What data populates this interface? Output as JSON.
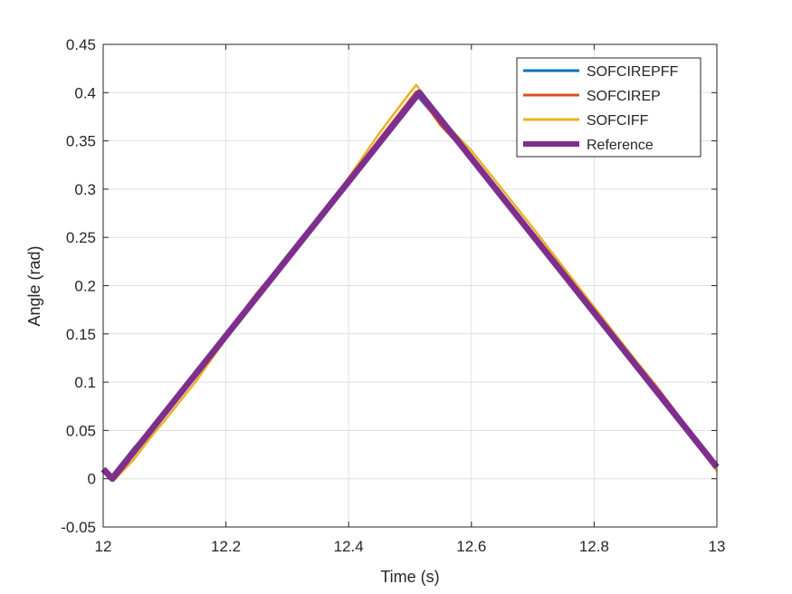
{
  "chart_data": {
    "type": "line",
    "xlabel": "Time (s)",
    "ylabel": "Angle (rad)",
    "xlim": [
      12,
      13
    ],
    "ylim": [
      -0.05,
      0.45
    ],
    "xticks": [
      12,
      12.2,
      12.4,
      12.6,
      12.8,
      13
    ],
    "xtick_labels": [
      "12",
      "12.2",
      "12.4",
      "12.6",
      "12.8",
      "13"
    ],
    "yticks": [
      -0.05,
      0,
      0.05,
      0.1,
      0.15,
      0.2,
      0.25,
      0.3,
      0.35,
      0.4,
      0.45
    ],
    "ytick_labels": [
      "-0.05",
      "0",
      "0.05",
      "0.1",
      "0.15",
      "0.2",
      "0.25",
      "0.3",
      "0.35",
      "0.4",
      "0.45"
    ],
    "grid": true,
    "legend_position": "top-right",
    "series": [
      {
        "name": "SOFCIREPFF",
        "color": "#0072BD",
        "width": 2.5,
        "x": [
          12,
          12.01,
          12.05,
          12.1,
          12.14,
          12.2,
          12.3,
          12.4,
          12.45,
          12.51,
          12.55,
          12.6,
          12.7,
          12.8,
          12.9,
          12.95,
          13
        ],
        "y": [
          0.008,
          0.0,
          0.032,
          0.068,
          0.1,
          0.148,
          0.228,
          0.308,
          0.35,
          0.398,
          0.368,
          0.33,
          0.254,
          0.174,
          0.096,
          0.055,
          0.012
        ]
      },
      {
        "name": "SOFCIREP",
        "color": "#D95319",
        "width": 2.5,
        "x": [
          12,
          12.01,
          12.05,
          12.1,
          12.2,
          12.25,
          12.3,
          12.4,
          12.45,
          12.51,
          12.55,
          12.6,
          12.7,
          12.8,
          12.9,
          12.95,
          13
        ],
        "y": [
          0.008,
          0.0,
          0.031,
          0.068,
          0.15,
          0.192,
          0.23,
          0.31,
          0.352,
          0.401,
          0.366,
          0.332,
          0.255,
          0.176,
          0.097,
          0.055,
          0.012
        ]
      },
      {
        "name": "SOFCIFF",
        "color": "#EDB120",
        "width": 2.5,
        "x": [
          12,
          12.02,
          12.05,
          12.08,
          12.1,
          12.15,
          12.2,
          12.3,
          12.4,
          12.45,
          12.5,
          12.51,
          12.55,
          12.6,
          12.65,
          12.7,
          12.8,
          12.9,
          12.95,
          13
        ],
        "y": [
          0.008,
          0.0,
          0.02,
          0.045,
          0.06,
          0.1,
          0.145,
          0.225,
          0.312,
          0.358,
          0.4,
          0.408,
          0.373,
          0.34,
          0.3,
          0.26,
          0.178,
          0.096,
          0.052,
          0.008
        ]
      }
    ],
    "reference": {
      "name": "Reference",
      "color": "#7E2F8E",
      "width": 7,
      "x": [
        12,
        12.015,
        12.515,
        13
      ],
      "y": [
        0.01,
        0.0,
        0.4,
        0.012
      ]
    },
    "legend": [
      {
        "name": "SOFCIREPFF",
        "color": "#0072BD",
        "width": 3
      },
      {
        "name": "SOFCIREP",
        "color": "#D95319",
        "width": 3
      },
      {
        "name": "SOFCIFF",
        "color": "#EDB120",
        "width": 3
      },
      {
        "name": "Reference",
        "color": "#7E2F8E",
        "width": 6
      }
    ]
  }
}
